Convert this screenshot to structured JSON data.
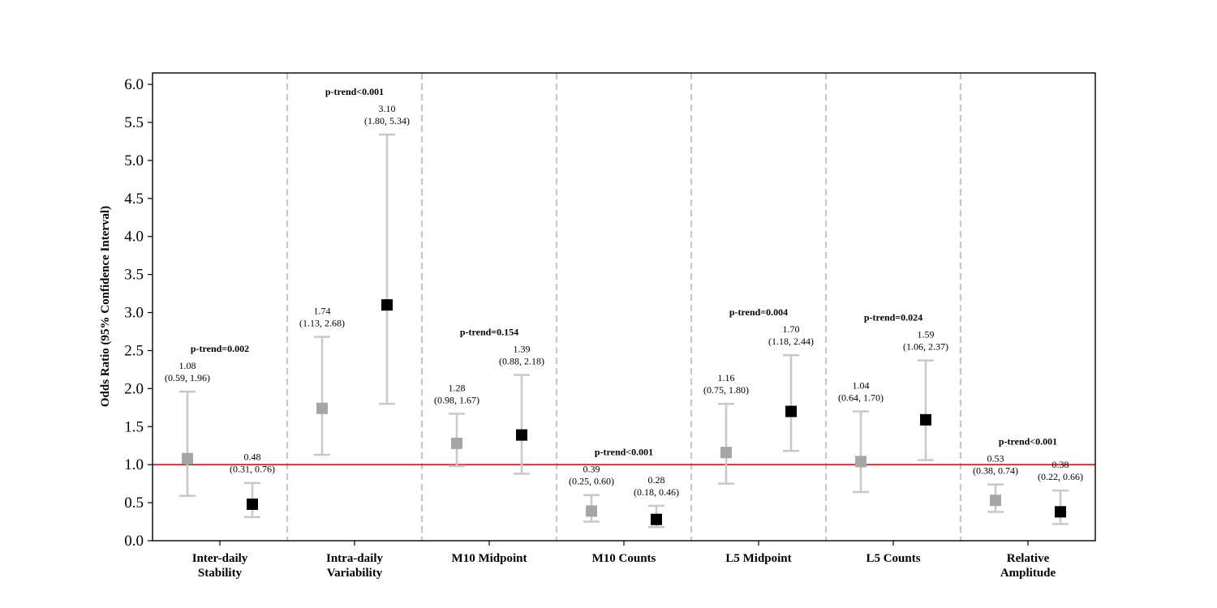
{
  "chart_data": {
    "type": "scatter",
    "title": "",
    "xlabel": "",
    "ylabel": "Odds Ratio (95% Confidence Interval)",
    "ylim": [
      0,
      6.15
    ],
    "yticks": [
      "0.0",
      "0.5",
      "1.0",
      "1.5",
      "2.0",
      "2.5",
      "3.0",
      "3.5",
      "4.0",
      "4.5",
      "5.0",
      "5.5",
      "6.0"
    ],
    "reference_line": {
      "y": 1.0,
      "color": "#d62728"
    },
    "grid": false,
    "legend": "none",
    "colors": {
      "series_a": "#a6a6a6",
      "series_b": "#000000",
      "errorbar": "#c8c8c8",
      "separator": "#c8c8c8"
    },
    "categories": [
      {
        "label_lines": [
          "Inter-daily",
          "Stability"
        ],
        "p_trend": "p-trend=0.002",
        "points": [
          {
            "or": 1.08,
            "lo": 0.59,
            "hi": 1.96,
            "label_or": "1.08",
            "label_ci": "(0.59, 1.96)"
          },
          {
            "or": 0.48,
            "lo": 0.31,
            "hi": 0.76,
            "label_or": "0.48",
            "label_ci": "(0.31, 0.76)"
          }
        ]
      },
      {
        "label_lines": [
          "Intra-daily",
          "Variability"
        ],
        "p_trend": "p-trend<0.001",
        "points": [
          {
            "or": 1.74,
            "lo": 1.13,
            "hi": 2.68,
            "label_or": "1.74",
            "label_ci": "(1.13, 2.68)"
          },
          {
            "or": 3.1,
            "lo": 1.8,
            "hi": 5.34,
            "label_or": "3.10",
            "label_ci": "(1.80, 5.34)"
          }
        ]
      },
      {
        "label_lines": [
          "M10 Midpoint"
        ],
        "p_trend": "p-trend=0.154",
        "points": [
          {
            "or": 1.28,
            "lo": 0.98,
            "hi": 1.67,
            "label_or": "1.28",
            "label_ci": "(0.98, 1.67)"
          },
          {
            "or": 1.39,
            "lo": 0.88,
            "hi": 2.18,
            "label_or": "1.39",
            "label_ci": "(0.88, 2.18)"
          }
        ]
      },
      {
        "label_lines": [
          "M10 Counts"
        ],
        "p_trend": "p-trend<0.001",
        "points": [
          {
            "or": 0.39,
            "lo": 0.25,
            "hi": 0.6,
            "label_or": "0.39",
            "label_ci": "(0.25, 0.60)"
          },
          {
            "or": 0.28,
            "lo": 0.18,
            "hi": 0.46,
            "label_or": "0.28",
            "label_ci": "(0.18, 0.46)"
          }
        ]
      },
      {
        "label_lines": [
          "L5 Midpoint"
        ],
        "p_trend": "p-trend=0.004",
        "points": [
          {
            "or": 1.16,
            "lo": 0.75,
            "hi": 1.8,
            "label_or": "1.16",
            "label_ci": "(0.75, 1.80)"
          },
          {
            "or": 1.7,
            "lo": 1.18,
            "hi": 2.44,
            "label_or": "1.70",
            "label_ci": "(1.18, 2.44)"
          }
        ]
      },
      {
        "label_lines": [
          "L5 Counts"
        ],
        "p_trend": "p-trend=0.024",
        "points": [
          {
            "or": 1.04,
            "lo": 0.64,
            "hi": 1.7,
            "label_or": "1.04",
            "label_ci": "(0.64, 1.70)"
          },
          {
            "or": 1.59,
            "lo": 1.06,
            "hi": 2.37,
            "label_or": "1.59",
            "label_ci": "(1.06, 2.37)"
          }
        ]
      },
      {
        "label_lines": [
          "Relative",
          "Amplitude"
        ],
        "p_trend": "p-trend<0.001",
        "points": [
          {
            "or": 0.53,
            "lo": 0.38,
            "hi": 0.74,
            "label_or": "0.53",
            "label_ci": "(0.38, 0.74)"
          },
          {
            "or": 0.38,
            "lo": 0.22,
            "hi": 0.66,
            "label_or": "0.38",
            "label_ci": "(0.22, 0.66)"
          }
        ]
      }
    ]
  }
}
